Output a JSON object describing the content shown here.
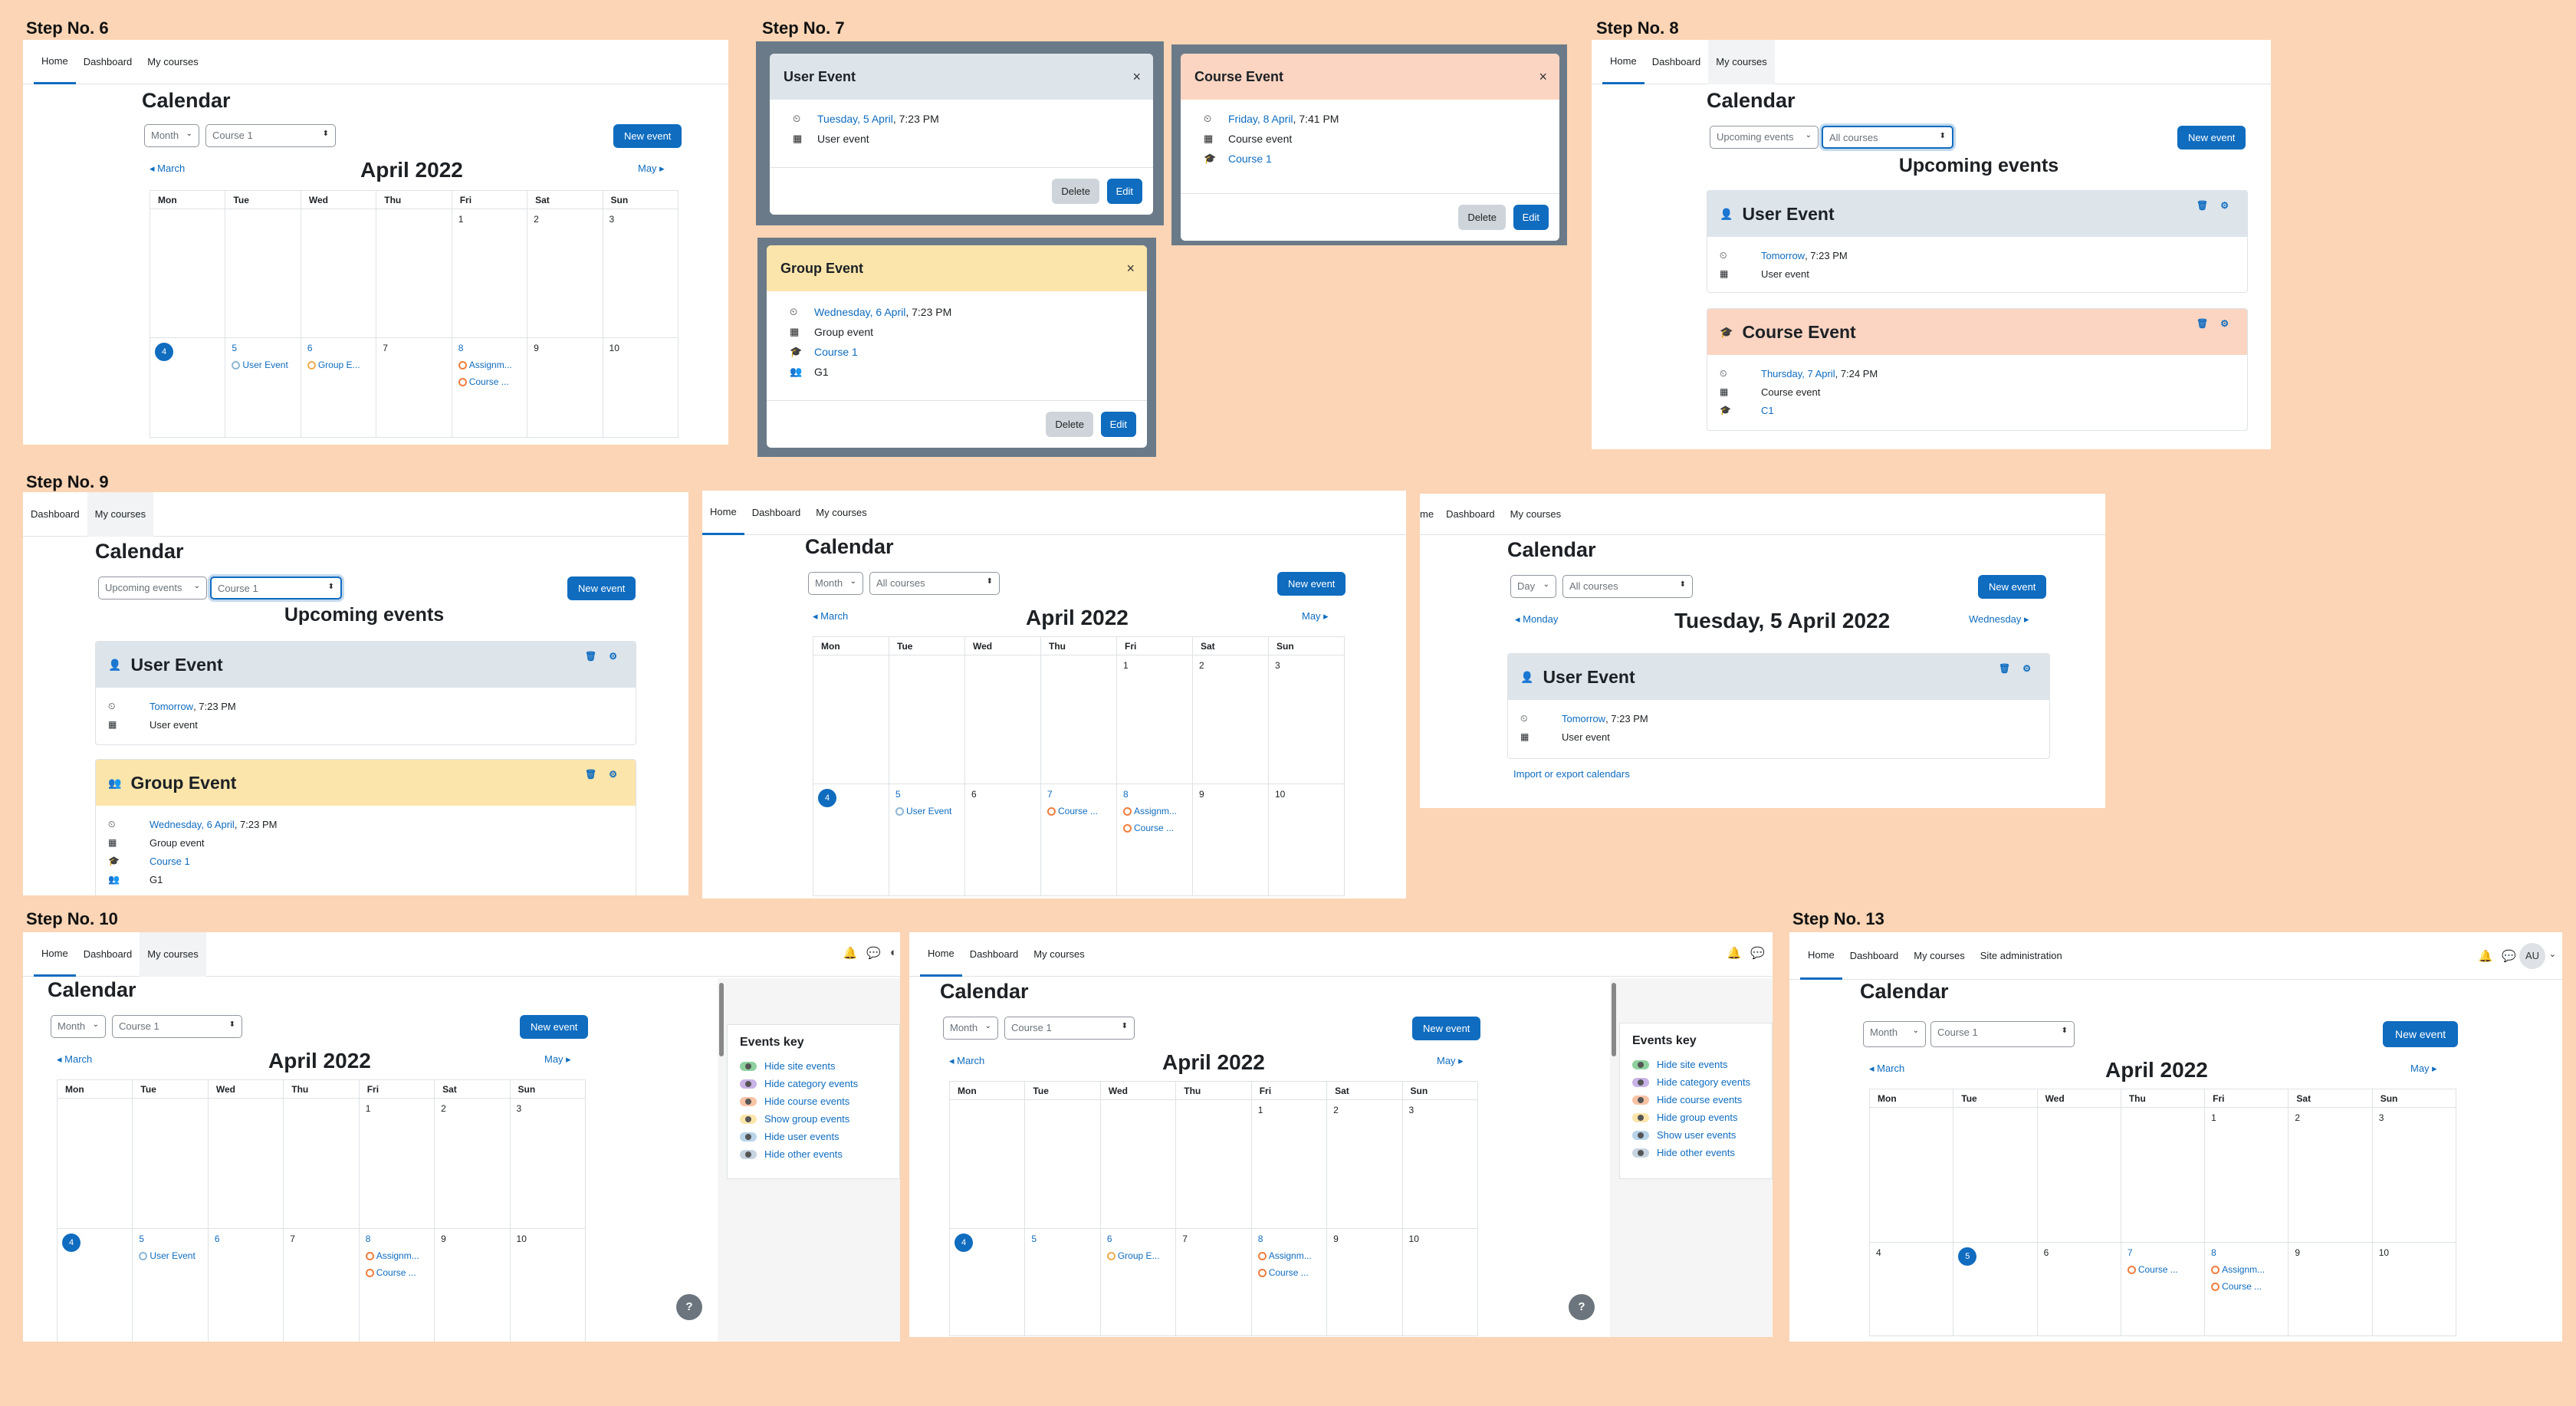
{
  "steps": {
    "s6": "Step No. 6",
    "s7": "Step No. 7",
    "s8": "Step No. 8",
    "s9": "Step No. 9",
    "s10": "Step No. 10",
    "s13": "Step No. 13"
  },
  "nav": {
    "home": "Home",
    "dashboard": "Dashboard",
    "courses": "My courses",
    "site_admin": "Site administration",
    "home_cut": "me"
  },
  "cal": {
    "title": "Calendar",
    "month": "Month",
    "day": "Day",
    "upcoming": "Upcoming events",
    "course1": "Course 1",
    "all_courses": "All courses",
    "new_event": "New event",
    "month_title": "April 2022",
    "prev": "March",
    "next": "May",
    "days": [
      "Mon",
      "Tue",
      "Wed",
      "Thu",
      "Fri",
      "Sat",
      "Sun"
    ],
    "week1": [
      "",
      "",
      "",
      "",
      "1",
      "2",
      "3"
    ],
    "week2": [
      "4",
      "5",
      "6",
      "7",
      "8",
      "9",
      "10"
    ],
    "upcoming_heading": "Upcoming events",
    "day_title": "Tuesday, 5 April 2022",
    "day_prev": "Monday",
    "day_next": "Wednesday",
    "import_export": "Import or export calendars"
  },
  "events": {
    "user_event": "User Event",
    "group_event": "Group E...",
    "group_event_full": "Group Event",
    "course_event": "Course Event",
    "assignment": "Assignm...",
    "course_short": "Course ...",
    "course_mid": "Course ..."
  },
  "modals": {
    "user": {
      "title": "User Event",
      "date_link": "Tuesday, 5 April",
      "time": ", 7:23 PM",
      "type": "User event"
    },
    "course": {
      "title": "Course Event",
      "date_link": "Friday, 8 April",
      "time": ", 7:41 PM",
      "type": "Course event",
      "course": "Course 1"
    },
    "group": {
      "title": "Group Event",
      "date_link": "Wednesday, 6 April",
      "time": ", 7:23 PM",
      "type": "Group event",
      "course": "Course 1",
      "group": "G1"
    },
    "delete": "Delete",
    "edit": "Edit",
    "close": "×"
  },
  "upcoming": {
    "user": {
      "title": "User Event",
      "date_link": "Tomorrow",
      "time": ", 7:23 PM",
      "type": "User event"
    },
    "course": {
      "title": "Course Event",
      "date_link": "Thursday, 7 April",
      "time": ", 7:24 PM",
      "type": "Course event",
      "course": "C1"
    },
    "group": {
      "title": "Group Event",
      "date_link": "Wednesday, 6 April",
      "time": ", 7:23 PM",
      "type": "Group event",
      "course": "Course 1",
      "group": "G1"
    }
  },
  "events_key": {
    "title": "Events key",
    "a": [
      "Hide site events",
      "Hide category events",
      "Hide course events",
      "Show group events",
      "Hide user events",
      "Hide other events"
    ],
    "b": [
      "Hide site events",
      "Hide category events",
      "Hide course events",
      "Hide group events",
      "Show user events",
      "Hide other events"
    ]
  },
  "avatar": "AU",
  "help": "?",
  "colors": {
    "accent": "#0f6cbf",
    "background": "#fbd5b5",
    "user": "#dde5eb",
    "course": "#fbd5c2",
    "group": "#fce5ab"
  }
}
